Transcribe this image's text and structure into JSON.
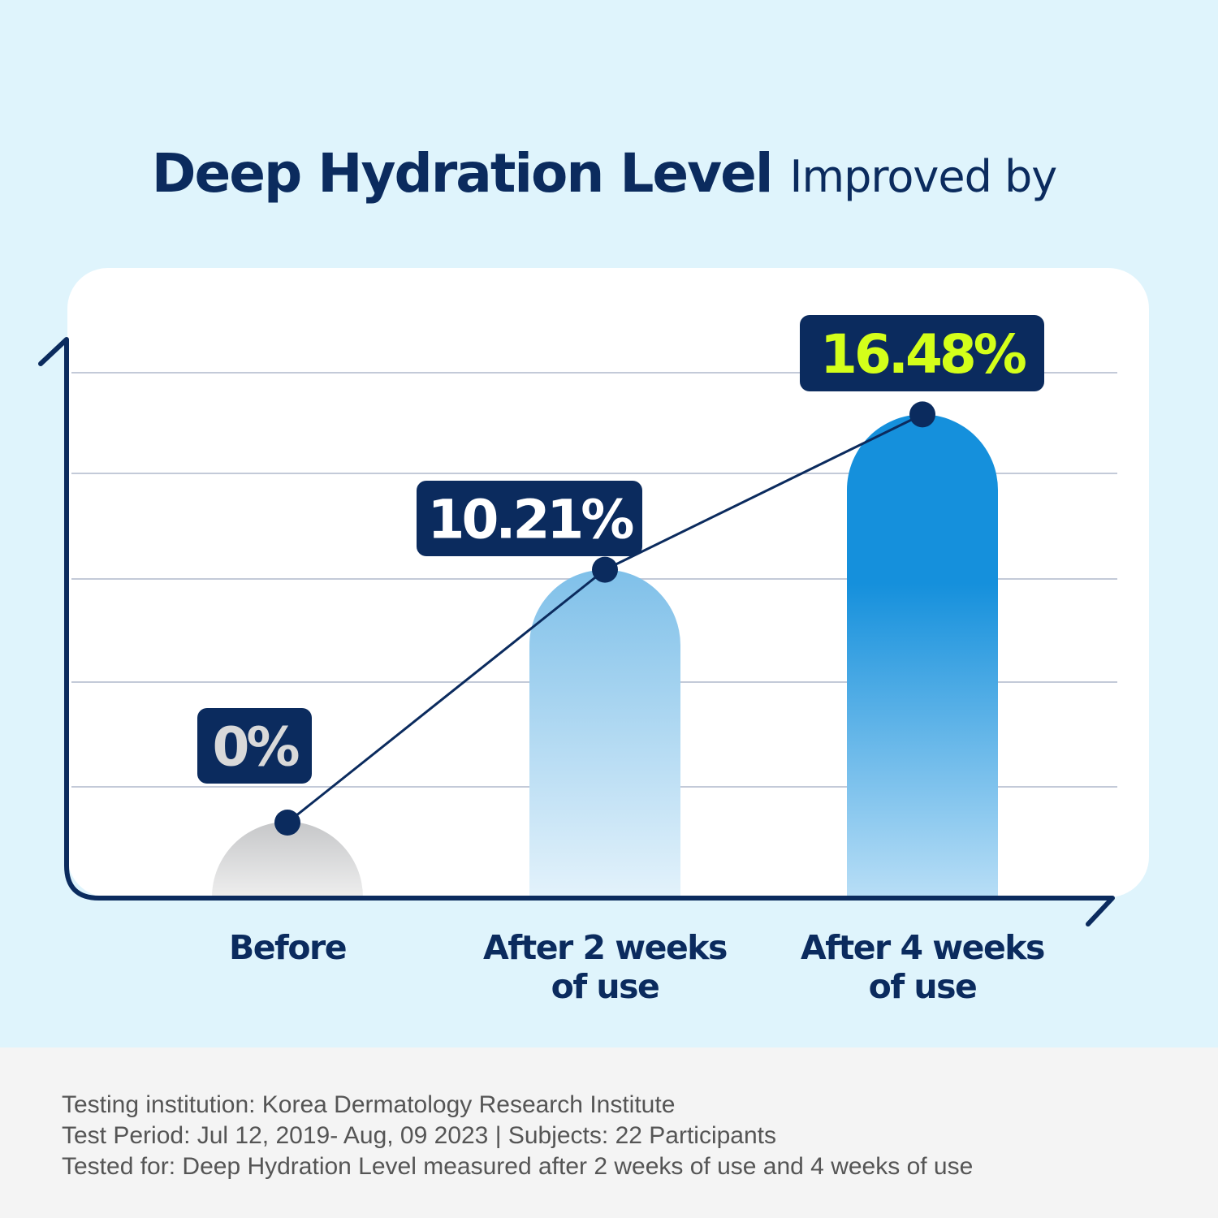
{
  "title": {
    "bold": "Deep Hydration Level",
    "regular": "Improved by"
  },
  "chart_data": {
    "type": "bar",
    "title": "Deep Hydration Level Improved by",
    "categories": [
      [
        "Before"
      ],
      [
        "After 2 weeks",
        "of use"
      ],
      [
        "After 4 weeks",
        "of use"
      ]
    ],
    "values": [
      0,
      10.21,
      16.48
    ],
    "value_labels": [
      "0%",
      "10.21%",
      "16.48%"
    ],
    "overlay_line": true,
    "grid": true,
    "colors": {
      "navy": "#0b2b5e",
      "before_top": "#c6c7c9",
      "before_bottom": "#eeeeee",
      "week2_top": "#7fc0e9",
      "week2_bottom": "#e3f2fb",
      "week4_top": "#1590dc",
      "week4_bottom": "#b8def6",
      "label_before": "#d9d9d9",
      "label_week2": "#ffffff",
      "label_week4": "#d4ff1a"
    }
  },
  "footer": {
    "lines": [
      "Testing institution: Korea Dermatology Research Institute",
      "Test Period: Jul 12, 2019- Aug, 09 2023  |  Subjects: 22 Participants",
      "Tested for: Deep Hydration Level measured after 2 weeks of use and 4 weeks of use"
    ]
  }
}
